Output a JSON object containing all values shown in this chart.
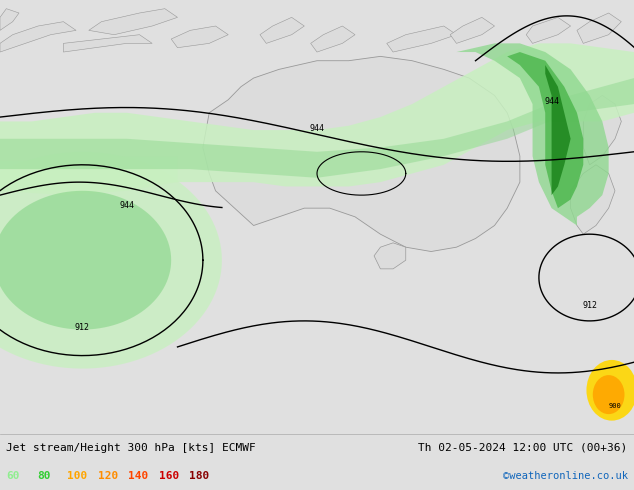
{
  "title_left": "Jet stream/Height 300 hPa [kts] ECMWF",
  "title_right": "Th 02-05-2024 12:00 UTC (00+36)",
  "credit": "©weatheronline.co.uk",
  "legend_values": [
    60,
    80,
    100,
    120,
    140,
    160,
    180
  ],
  "legend_colors": [
    "#90ee90",
    "#32cd32",
    "#ffa500",
    "#ff8c00",
    "#ff4500",
    "#cc0000",
    "#880000"
  ],
  "bg_color": "#e0e0e0",
  "land_color": "#dcdcdc",
  "ocean_color": "#e8e8e8",
  "figsize": [
    6.34,
    4.9
  ],
  "dpi": 100,
  "bar_height": 0.115,
  "jet60_color": "#c8f0c0",
  "jet80_color": "#90d890",
  "jet100_color": "#50b850",
  "jet120_color": "#208820",
  "jet140_color": "#ffd700",
  "jet160_color": "#ffa500",
  "jet180_color": "#ff6000"
}
